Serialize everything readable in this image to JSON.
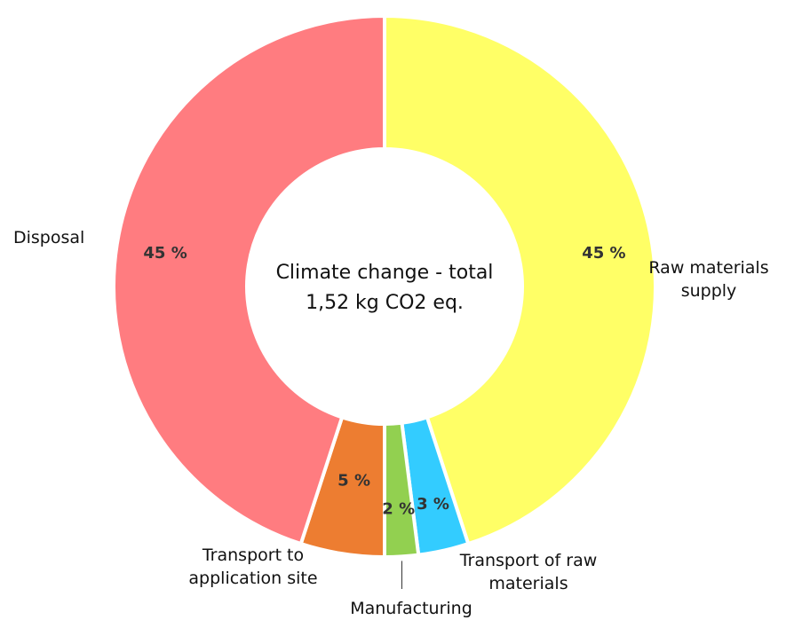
{
  "chart_data": {
    "type": "pie",
    "subtype": "donut",
    "center_title": "Climate change - total",
    "center_value": "1,52 kg CO2 eq.",
    "slices": [
      {
        "label": "Raw materials supply",
        "label_lines": [
          "Raw materials",
          "supply"
        ],
        "value": 45,
        "display": "45 %",
        "color": "#FFFF66"
      },
      {
        "label": "Transport of raw materials",
        "label_lines": [
          "Transport of raw",
          "materials"
        ],
        "value": 3,
        "display": "3 %",
        "color": "#33CCFF"
      },
      {
        "label": "Manufacturing",
        "label_lines": [
          "Manufacturing"
        ],
        "value": 2,
        "display": "2 %",
        "color": "#92D050"
      },
      {
        "label": "Transport to application site",
        "label_lines": [
          "Transport to",
          "application site"
        ],
        "value": 5,
        "display": "5 %",
        "color": "#ED7D31"
      },
      {
        "label": "Disposal",
        "label_lines": [
          "Disposal"
        ],
        "value": 45,
        "display": "45 %",
        "color": "#FF7C80"
      }
    ],
    "legend": "none"
  }
}
